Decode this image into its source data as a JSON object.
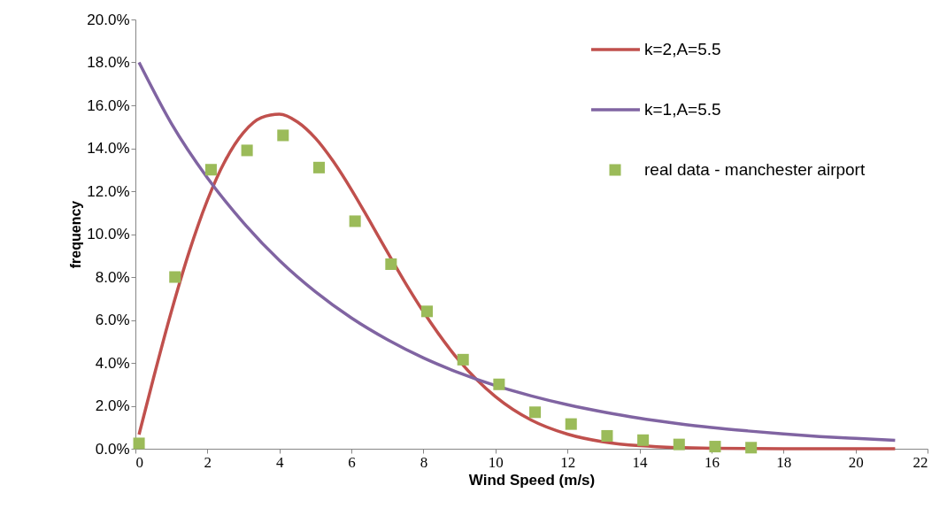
{
  "chart_data": {
    "type": "line",
    "xlabel": "Wind Speed (m/s)",
    "ylabel": "frequency",
    "xlim": [
      0,
      22
    ],
    "xticks": [
      0,
      2,
      4,
      6,
      8,
      10,
      12,
      14,
      16,
      18,
      20,
      22
    ],
    "ylim": [
      0,
      20
    ],
    "yticks": [
      {
        "value": 0,
        "label": "0.0%"
      },
      {
        "value": 2,
        "label": "2.0%"
      },
      {
        "value": 4,
        "label": "4.0%"
      },
      {
        "value": 6,
        "label": "6.0%"
      },
      {
        "value": 8,
        "label": "8.0%"
      },
      {
        "value": 10,
        "label": "10.0%"
      },
      {
        "value": 12,
        "label": "12.0%"
      },
      {
        "value": 14,
        "label": "14.0%"
      },
      {
        "value": 16,
        "label": "16.0%"
      },
      {
        "value": 18,
        "label": "18.0%"
      },
      {
        "value": 20,
        "label": "20.0%"
      }
    ],
    "grid": false,
    "legend": "top right",
    "line_style": "solid",
    "series": [
      {
        "name": "k=2,A=5.5",
        "marker": "none",
        "color": "#c0504d",
        "x": [
          0.1,
          0.5,
          1,
          1.5,
          2,
          2.5,
          3,
          3.5,
          4,
          4.5,
          5,
          5.5,
          6,
          6.5,
          7,
          7.5,
          8,
          9,
          10,
          11,
          12,
          13,
          14,
          16,
          18,
          21.1
        ],
        "values": [
          0.66,
          3.28,
          6.4,
          9.21,
          11.58,
          13.44,
          14.73,
          15.43,
          15.59,
          15.23,
          14.47,
          13.38,
          12.07,
          10.63,
          9.16,
          7.72,
          6.38,
          4.09,
          2.43,
          1.33,
          0.68,
          0.32,
          0.14,
          0.02,
          0.0,
          0.0
        ]
      },
      {
        "name": "k=1,A=5.5",
        "marker": "none",
        "color": "#8064a2",
        "x": [
          0.1,
          1,
          2,
          3,
          4,
          5,
          6,
          7,
          8,
          9,
          10,
          11,
          12,
          13,
          14,
          15,
          16,
          17,
          18,
          19,
          20,
          21.1
        ],
        "values": [
          18.0,
          15.15,
          12.62,
          10.53,
          8.77,
          7.31,
          6.09,
          5.08,
          4.23,
          3.53,
          2.94,
          2.46,
          2.05,
          1.71,
          1.42,
          1.19,
          0.99,
          0.83,
          0.69,
          0.57,
          0.48,
          0.39
        ]
      },
      {
        "name": "real data - manchester airport",
        "type": "scatter",
        "marker": "square",
        "color": "#9bbb59",
        "x": [
          0.1,
          1.1,
          2.1,
          3.1,
          4.1,
          5.1,
          6.1,
          7.1,
          8.1,
          9.1,
          10.1,
          11.1,
          12.1,
          13.1,
          14.1,
          15.1,
          16.1,
          17.1
        ],
        "values": [
          0.25,
          8.0,
          13.0,
          13.9,
          14.6,
          13.1,
          10.6,
          8.6,
          6.4,
          4.15,
          3.0,
          1.7,
          1.15,
          0.6,
          0.4,
          0.2,
          0.1,
          0.05
        ]
      }
    ]
  }
}
